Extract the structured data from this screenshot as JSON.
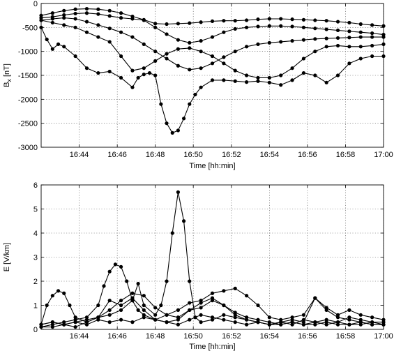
{
  "chart_data": [
    {
      "type": "line",
      "title": "",
      "xlabel": "Time [hh:min]",
      "ylabel": "B",
      "ylabel_subscript": "x",
      "ylabel_unit": " [nT]",
      "xlim": [
        16.7,
        17.0
      ],
      "ylim": [
        -3000,
        0
      ],
      "grid": true,
      "x_ticks": [
        16.7333,
        16.7667,
        16.8,
        16.8333,
        16.8667,
        16.9,
        16.9333,
        16.9667,
        17.0
      ],
      "x_tick_labels": [
        "16:44",
        "16:46",
        "16:48",
        "16:50",
        "16:52",
        "16:54",
        "16:56",
        "16:58",
        "17:00"
      ],
      "y_ticks": [
        -3000,
        -2500,
        -2000,
        -1500,
        -1000,
        -500,
        0
      ],
      "y_tick_labels": [
        "-3000",
        "-2500",
        "-2000",
        "-1500",
        "-1000",
        "-500",
        "0"
      ],
      "series": [
        {
          "x": [
            16.7,
            16.71,
            16.72,
            16.73,
            16.74,
            16.75,
            16.76,
            16.77,
            16.78,
            16.79,
            16.8,
            16.81,
            16.82,
            16.83,
            16.84,
            16.85,
            16.86,
            16.87,
            16.88,
            16.89,
            16.9,
            16.91,
            16.92,
            16.93,
            16.94,
            16.95,
            16.96,
            16.97,
            16.98,
            16.99,
            17.0
          ],
          "y": [
            -250,
            -200,
            -150,
            -120,
            -110,
            -120,
            -150,
            -200,
            -270,
            -340,
            -420,
            -430,
            -420,
            -410,
            -390,
            -370,
            -360,
            -360,
            -350,
            -330,
            -320,
            -320,
            -330,
            -340,
            -350,
            -360,
            -380,
            -400,
            -430,
            -450,
            -470
          ]
        },
        {
          "x": [
            16.7,
            16.71,
            16.72,
            16.73,
            16.74,
            16.75,
            16.76,
            16.77,
            16.78,
            16.79,
            16.8,
            16.81,
            16.82,
            16.83,
            16.84,
            16.85,
            16.86,
            16.87,
            16.88,
            16.89,
            16.9,
            16.91,
            16.92,
            16.93,
            16.94,
            16.95,
            16.96,
            16.97,
            16.98,
            16.99,
            17.0
          ],
          "y": [
            -300,
            -280,
            -240,
            -210,
            -200,
            -220,
            -260,
            -300,
            -320,
            -350,
            -500,
            -640,
            -760,
            -820,
            -780,
            -700,
            -600,
            -530,
            -500,
            -480,
            -470,
            -470,
            -480,
            -500,
            -520,
            -540,
            -560,
            -580,
            -600,
            -620,
            -650
          ]
        },
        {
          "x": [
            16.7,
            16.71,
            16.72,
            16.73,
            16.74,
            16.75,
            16.76,
            16.77,
            16.78,
            16.79,
            16.8,
            16.81,
            16.82,
            16.83,
            16.84,
            16.85,
            16.86,
            16.87,
            16.88,
            16.89,
            16.9,
            16.91,
            16.92,
            16.93,
            16.94,
            16.95,
            16.96,
            16.97,
            16.98,
            16.99,
            17.0
          ],
          "y": [
            -350,
            -320,
            -300,
            -320,
            -380,
            -450,
            -520,
            -600,
            -700,
            -850,
            -1000,
            -1150,
            -1300,
            -1380,
            -1350,
            -1250,
            -1120,
            -1000,
            -900,
            -850,
            -820,
            -800,
            -780,
            -760,
            -740,
            -730,
            -720,
            -710,
            -700,
            -700,
            -700
          ]
        },
        {
          "x": [
            16.7,
            16.71,
            16.72,
            16.73,
            16.74,
            16.75,
            16.76,
            16.77,
            16.78,
            16.79,
            16.8,
            16.81,
            16.82,
            16.83,
            16.84,
            16.85,
            16.86,
            16.87,
            16.88,
            16.89,
            16.9,
            16.91,
            16.92,
            16.93,
            16.94,
            16.95,
            16.96,
            16.97,
            16.98,
            16.99,
            17.0
          ],
          "y": [
            -350,
            -400,
            -450,
            -500,
            -600,
            -700,
            -800,
            -1100,
            -1400,
            -1350,
            -1200,
            -1050,
            -950,
            -930,
            -1000,
            -1100,
            -1250,
            -1400,
            -1500,
            -1550,
            -1550,
            -1500,
            -1350,
            -1150,
            -1000,
            -900,
            -880,
            -900,
            -900,
            -880,
            -850
          ]
        },
        {
          "x": [
            16.7,
            16.705,
            16.71,
            16.715,
            16.72,
            16.73,
            16.74,
            16.75,
            16.76,
            16.77,
            16.78,
            16.785,
            16.79,
            16.795,
            16.8,
            16.805,
            16.81,
            16.815,
            16.82,
            16.825,
            16.83,
            16.835,
            16.84,
            16.85,
            16.86,
            16.87,
            16.88,
            16.89,
            16.9,
            16.91,
            16.92,
            16.93,
            16.94,
            16.95,
            16.96,
            16.97,
            16.98,
            16.99,
            17.0
          ],
          "y": [
            -500,
            -750,
            -950,
            -850,
            -900,
            -1100,
            -1350,
            -1450,
            -1420,
            -1550,
            -1750,
            -1550,
            -1480,
            -1450,
            -1500,
            -2100,
            -2500,
            -2700,
            -2650,
            -2400,
            -2100,
            -1900,
            -1750,
            -1600,
            -1600,
            -1620,
            -1640,
            -1620,
            -1650,
            -1700,
            -1600,
            -1450,
            -1500,
            -1650,
            -1500,
            -1250,
            -1150,
            -1100,
            -1100
          ]
        }
      ]
    },
    {
      "type": "line",
      "title": "",
      "xlabel": "Time [hh:min]",
      "ylabel": "E [V/km]",
      "xlim": [
        16.7,
        17.0
      ],
      "ylim": [
        0,
        6
      ],
      "grid": true,
      "x_ticks": [
        16.7333,
        16.7667,
        16.8,
        16.8333,
        16.8667,
        16.9,
        16.9333,
        16.9667,
        17.0
      ],
      "x_tick_labels": [
        "16:44",
        "16:46",
        "16:48",
        "16:50",
        "16:52",
        "16:54",
        "16:56",
        "16:58",
        "17:00"
      ],
      "y_ticks": [
        0,
        1,
        2,
        3,
        4,
        5,
        6
      ],
      "y_tick_labels": [
        "0",
        "1",
        "2",
        "3",
        "4",
        "5",
        "6"
      ],
      "series": [
        {
          "x": [
            16.7,
            16.705,
            16.71,
            16.715,
            16.72,
            16.725,
            16.73,
            16.74,
            16.75,
            16.76,
            16.77,
            16.78,
            16.79,
            16.8,
            16.81,
            16.82,
            16.83,
            16.84,
            16.85,
            16.86,
            16.87,
            16.88,
            16.89,
            16.9,
            16.91,
            16.92,
            16.93,
            16.94,
            16.95,
            16.96,
            16.97,
            16.98,
            16.99,
            17.0
          ],
          "y": [
            0.2,
            1.0,
            1.4,
            1.6,
            1.5,
            1.0,
            0.5,
            0.3,
            0.5,
            1.2,
            1.0,
            1.3,
            0.8,
            0.4,
            0.3,
            0.2,
            0.4,
            0.6,
            0.5,
            0.4,
            0.3,
            0.2,
            0.3,
            0.2,
            0.3,
            0.2,
            0.4,
            0.3,
            0.2,
            0.3,
            0.2,
            0.2,
            0.3,
            0.2
          ]
        },
        {
          "x": [
            16.7,
            16.71,
            16.72,
            16.73,
            16.74,
            16.75,
            16.755,
            16.76,
            16.765,
            16.77,
            16.775,
            16.78,
            16.785,
            16.79,
            16.8,
            16.81,
            16.82,
            16.83,
            16.84,
            16.85,
            16.86,
            16.87,
            16.88,
            16.89,
            16.9,
            16.91,
            16.92,
            16.93,
            16.94,
            16.95,
            16.96,
            16.97,
            16.98,
            16.99,
            17.0
          ],
          "y": [
            0.1,
            0.2,
            0.3,
            0.4,
            0.5,
            1.0,
            1.8,
            2.4,
            2.7,
            2.6,
            2.0,
            1.2,
            0.8,
            0.6,
            0.4,
            0.3,
            0.4,
            0.8,
            1.1,
            1.3,
            1.0,
            0.6,
            0.4,
            0.3,
            0.2,
            0.3,
            0.4,
            0.3,
            1.3,
            0.8,
            0.5,
            0.4,
            0.3,
            0.2,
            0.2
          ]
        },
        {
          "x": [
            16.7,
            16.71,
            16.72,
            16.73,
            16.74,
            16.75,
            16.76,
            16.77,
            16.78,
            16.785,
            16.79,
            16.8,
            16.805,
            16.81,
            16.815,
            16.82,
            16.825,
            16.83,
            16.835,
            16.84,
            16.85,
            16.86,
            16.87,
            16.88,
            16.89,
            16.9,
            16.91,
            16.92,
            16.93,
            16.94,
            16.95,
            16.96,
            16.97,
            16.98,
            16.99,
            17.0
          ],
          "y": [
            0.2,
            0.3,
            0.2,
            0.3,
            0.4,
            0.5,
            0.6,
            0.8,
            1.2,
            1.9,
            1.0,
            0.6,
            1.0,
            2.0,
            4.0,
            5.7,
            4.5,
            2.0,
            0.5,
            0.3,
            0.4,
            0.6,
            0.5,
            0.4,
            0.3,
            0.2,
            0.2,
            0.3,
            0.2,
            0.2,
            0.3,
            0.2,
            0.2,
            0.3,
            0.2,
            0.2
          ]
        },
        {
          "x": [
            16.7,
            16.71,
            16.72,
            16.73,
            16.74,
            16.75,
            16.76,
            16.77,
            16.78,
            16.79,
            16.8,
            16.81,
            16.82,
            16.83,
            16.84,
            16.85,
            16.86,
            16.87,
            16.88,
            16.89,
            16.9,
            16.91,
            16.92,
            16.93,
            16.94,
            16.95,
            16.96,
            16.97,
            16.98,
            16.99,
            17.0
          ],
          "y": [
            0.1,
            0.1,
            0.2,
            0.1,
            0.3,
            0.5,
            0.8,
            1.2,
            1.5,
            1.4,
            0.9,
            0.6,
            0.8,
            1.1,
            1.2,
            1.5,
            1.6,
            1.7,
            1.4,
            1.0,
            0.5,
            0.4,
            0.5,
            0.6,
            1.3,
            0.9,
            0.6,
            0.8,
            0.6,
            0.5,
            0.4
          ]
        },
        {
          "x": [
            16.7,
            16.71,
            16.72,
            16.73,
            16.74,
            16.75,
            16.76,
            16.77,
            16.78,
            16.79,
            16.8,
            16.81,
            16.82,
            16.83,
            16.84,
            16.85,
            16.86,
            16.87,
            16.88,
            16.89,
            16.9,
            16.91,
            16.92,
            16.93,
            16.94,
            16.95,
            16.96,
            16.97,
            16.98,
            16.99,
            17.0
          ],
          "y": [
            0.2,
            0.3,
            0.2,
            0.3,
            0.2,
            0.4,
            0.3,
            0.4,
            0.3,
            0.5,
            0.4,
            0.6,
            0.5,
            0.8,
            0.9,
            1.2,
            1.0,
            0.7,
            0.5,
            0.4,
            0.3,
            0.2,
            0.3,
            0.2,
            0.3,
            0.4,
            0.3,
            0.5,
            0.4,
            0.3,
            0.3
          ]
        }
      ]
    }
  ]
}
